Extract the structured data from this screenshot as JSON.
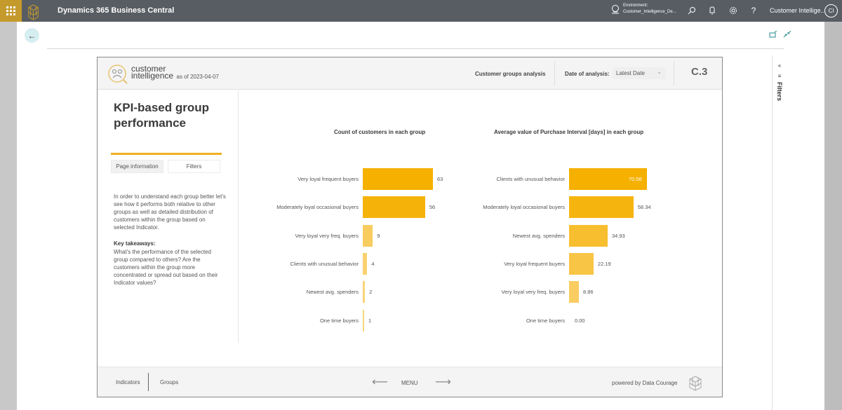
{
  "topbar": {
    "app_title": "Dynamics 365 Business Central",
    "environment_label": "Environment:",
    "environment_value": "Customer_Intelligence_De...",
    "user_name": "Customer Intellige...",
    "avatar_initials": "CI",
    "icons": [
      "waffle-icon",
      "app-logo",
      "environment-icon",
      "search-icon",
      "bell-icon",
      "gear-icon",
      "help-icon"
    ]
  },
  "page": {
    "back_icon": "arrow-left-icon",
    "actions": [
      "open-in-new-window-icon",
      "collapse-icon"
    ],
    "filters_pane_label": "Filters"
  },
  "report": {
    "brand_line1": "customer",
    "brand_line2": "intelligence",
    "as_of": "as of 2023-04-07",
    "header_link": "Customer groups analysis",
    "date_label": "Date of analysis:",
    "date_value": "Latest Date",
    "page_code": "C.3",
    "title": "KPI-based group performance",
    "tabs": [
      "Page information",
      "Filters"
    ],
    "description": "In order to understand each group better let's see how it performs both relative to other groups as well as detailed distribution of customers within the group based on selected Indicator.",
    "key_title": "Key takeaways:",
    "key_text": "What's the performance of the selected group compared to others? Are the customers within the group more concentrated or spread out based on their Indicator values?",
    "footer": {
      "nav_left": [
        "Indicators",
        "Groups"
      ],
      "menu_label": "MENU",
      "powered_by": "powered by Data Courage"
    }
  },
  "colors": {
    "accent": "#f5b000",
    "topbar": "#585d63",
    "waffle": "#c59a2d"
  },
  "chart_data": [
    {
      "type": "bar",
      "orientation": "horizontal",
      "title": "Count of customers in each group",
      "categories": [
        "Very loyal frequent buyers",
        "Moderately loyal occasional buyers",
        "Very loyal very freq. buyers",
        "Clients with unusual behavior",
        "Newest avg. spenders",
        "One time buyers"
      ],
      "values": [
        63,
        56,
        9,
        4,
        2,
        1
      ],
      "value_labels": [
        "63",
        "56",
        "9",
        "4",
        "2",
        "1"
      ],
      "xlim": [
        0,
        63
      ]
    },
    {
      "type": "bar",
      "orientation": "horizontal",
      "title": "Average value of Purchase Interval [days]  in each group",
      "categories": [
        "Clients with unusual behavior",
        "Moderately loyal occasional buyers",
        "Newest avg. spenders",
        "Very loyal frequent buyers",
        "Very loyal very freq. buyers",
        "One time buyers"
      ],
      "values": [
        70.56,
        58.34,
        34.93,
        22.19,
        8.86,
        0.0
      ],
      "value_labels": [
        "70.56",
        "58.34",
        "34.93",
        "22.19",
        "8.86",
        "0.00"
      ],
      "xlim": [
        0,
        70.56
      ]
    }
  ]
}
